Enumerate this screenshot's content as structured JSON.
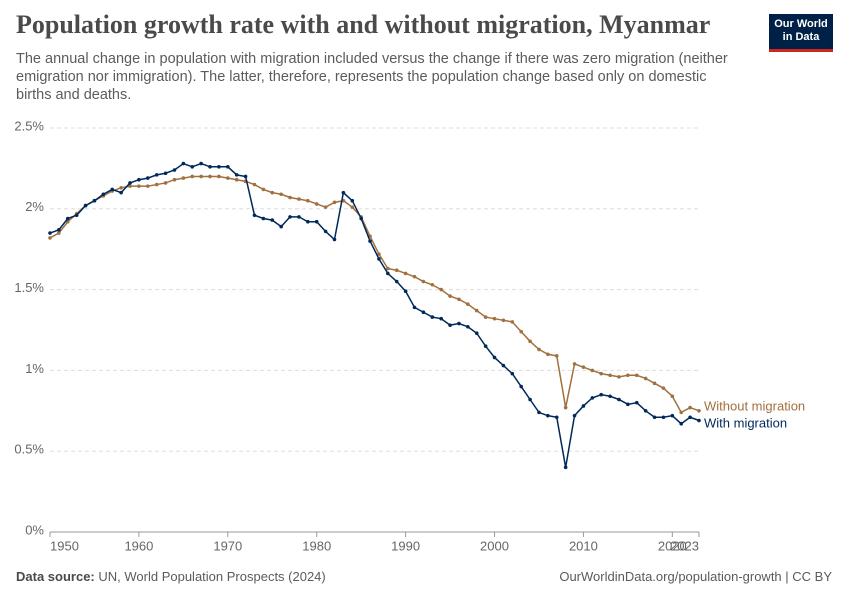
{
  "chart_data": {
    "type": "line",
    "title": "Population growth rate with and without migration, Myanmar",
    "subtitle": "The annual change in population with migration included versus the change if there was zero migration (neither emigration nor immigration). The latter, therefore, represents the population change based only on domestic births and deaths.",
    "logo": [
      "Our World",
      "in Data"
    ],
    "source_label": "Data source:",
    "source": "UN, World Population Prospects (2024)",
    "url": "OurWorldinData.org/population-growth | CC BY",
    "x": [
      1950,
      1951,
      1952,
      1953,
      1954,
      1955,
      1956,
      1957,
      1958,
      1959,
      1960,
      1961,
      1962,
      1963,
      1964,
      1965,
      1966,
      1967,
      1968,
      1969,
      1970,
      1971,
      1972,
      1973,
      1974,
      1975,
      1976,
      1977,
      1978,
      1979,
      1980,
      1981,
      1982,
      1983,
      1984,
      1985,
      1986,
      1987,
      1988,
      1989,
      1990,
      1991,
      1992,
      1993,
      1994,
      1995,
      1996,
      1997,
      1998,
      1999,
      2000,
      2001,
      2002,
      2003,
      2004,
      2005,
      2006,
      2007,
      2008,
      2009,
      2010,
      2011,
      2012,
      2013,
      2014,
      2015,
      2016,
      2017,
      2018,
      2019,
      2020,
      2021,
      2022,
      2023
    ],
    "series": [
      {
        "name": "Without migration",
        "color": "#a2703f",
        "values": [
          1.82,
          1.85,
          1.92,
          1.97,
          2.02,
          2.05,
          2.08,
          2.11,
          2.13,
          2.14,
          2.14,
          2.14,
          2.15,
          2.16,
          2.18,
          2.19,
          2.2,
          2.2,
          2.2,
          2.2,
          2.19,
          2.18,
          2.17,
          2.15,
          2.12,
          2.1,
          2.09,
          2.07,
          2.06,
          2.05,
          2.03,
          2.01,
          2.04,
          2.05,
          2.01,
          1.95,
          1.83,
          1.72,
          1.63,
          1.62,
          1.6,
          1.58,
          1.55,
          1.53,
          1.5,
          1.46,
          1.44,
          1.41,
          1.37,
          1.33,
          1.32,
          1.31,
          1.3,
          1.24,
          1.18,
          1.13,
          1.1,
          1.09,
          0.77,
          1.04,
          1.02,
          1.0,
          0.98,
          0.97,
          0.96,
          0.97,
          0.97,
          0.95,
          0.92,
          0.89,
          0.84,
          0.74,
          0.77,
          0.75
        ]
      },
      {
        "name": "With migration",
        "color": "#00295b",
        "values": [
          1.85,
          1.87,
          1.94,
          1.96,
          2.02,
          2.05,
          2.09,
          2.12,
          2.1,
          2.16,
          2.18,
          2.19,
          2.21,
          2.22,
          2.24,
          2.28,
          2.26,
          2.28,
          2.26,
          2.26,
          2.26,
          2.21,
          2.2,
          1.96,
          1.94,
          1.93,
          1.89,
          1.95,
          1.95,
          1.92,
          1.92,
          1.86,
          1.81,
          2.1,
          2.05,
          1.94,
          1.8,
          1.69,
          1.6,
          1.55,
          1.49,
          1.39,
          1.36,
          1.33,
          1.32,
          1.28,
          1.29,
          1.27,
          1.23,
          1.15,
          1.08,
          1.03,
          0.98,
          0.9,
          0.82,
          0.74,
          0.72,
          0.71,
          0.4,
          0.72,
          0.78,
          0.83,
          0.85,
          0.84,
          0.82,
          0.79,
          0.8,
          0.75,
          0.71,
          0.71,
          0.72,
          0.67,
          0.71,
          0.69
        ]
      }
    ],
    "xlim": [
      1950,
      2023
    ],
    "xticks": [
      1950,
      1960,
      1970,
      1980,
      1990,
      2000,
      2010,
      2020,
      2023
    ],
    "ylim": [
      0,
      2.5
    ],
    "yticks": [
      {
        "value": 0,
        "label": "0%"
      },
      {
        "value": 0.5,
        "label": "0.5%"
      },
      {
        "value": 1,
        "label": "1%"
      },
      {
        "value": 1.5,
        "label": "1.5%"
      },
      {
        "value": 2,
        "label": "2%"
      },
      {
        "value": 2.5,
        "label": "2.5%"
      }
    ],
    "grid": true
  }
}
